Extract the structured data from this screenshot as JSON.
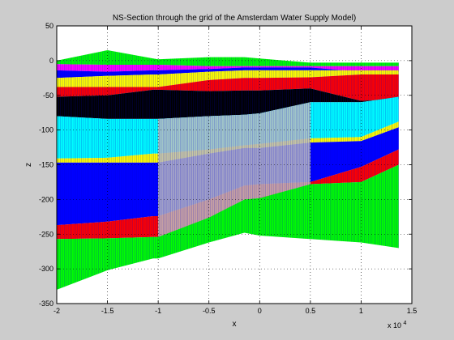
{
  "chart_data": {
    "type": "area",
    "title": "NS-Section through the grid of the Amsterdam Water Supply Model)",
    "xlabel": "x",
    "ylabel": "z",
    "x_exponent_label": "x 10",
    "x_exponent_power": "4",
    "xlim": [
      -2,
      1.5
    ],
    "ylim": [
      -350,
      50
    ],
    "xticks": [
      -2,
      -1.5,
      -1,
      -0.5,
      0,
      0.5,
      1,
      1.5
    ],
    "xtick_labels": [
      "-2",
      "-1.5",
      "-1",
      "-0.5",
      "0",
      "0.5",
      "1",
      "1.5"
    ],
    "yticks": [
      50,
      0,
      -50,
      -100,
      -150,
      -200,
      -250,
      -300,
      -350
    ],
    "ytick_labels": [
      "50",
      "0",
      "-50",
      "-100",
      "-150",
      "-200",
      "-250",
      "-300",
      "-350"
    ],
    "grid": true,
    "x_units_note": "x values in units of 10^4",
    "data_xmax": 1.37,
    "x": [
      -2.0,
      -1.5,
      -1.05,
      -1.0,
      -0.5,
      -0.15,
      0.0,
      0.5,
      1.0,
      1.37
    ],
    "surfaces": {
      "top": [
        0,
        15,
        3,
        2,
        5,
        5,
        3,
        -3,
        -3,
        -3
      ],
      "a": [
        -5,
        -6,
        -6,
        -6,
        -8,
        -8,
        -8,
        -8,
        -8,
        -8
      ],
      "b": [
        -14,
        -16,
        -14,
        -14,
        -12,
        -10,
        -10,
        -10,
        -16,
        -16
      ],
      "c": [
        -25,
        -22,
        -20,
        -20,
        -16,
        -14,
        -14,
        -14,
        -14,
        -14
      ],
      "d": [
        -38,
        -38,
        -38,
        -38,
        -28,
        -25,
        -25,
        -24,
        -20,
        -20
      ],
      "e": [
        -52,
        -50,
        -42,
        -42,
        -44,
        -43,
        -43,
        -40,
        -58,
        -55
      ],
      "f": [
        -80,
        -84,
        -84,
        -84,
        -80,
        -78,
        -76,
        -60,
        -60,
        -52
      ],
      "g": [
        -141,
        -140,
        -134,
        -134,
        -128,
        -122,
        -120,
        -112,
        -110,
        -88
      ],
      "h": [
        -147,
        -147,
        -147,
        -147,
        -134,
        -126,
        -126,
        -118,
        -116,
        -96
      ],
      "i": [
        -237,
        -232,
        -224,
        -224,
        -200,
        -180,
        -178,
        -175,
        -153,
        -128
      ],
      "j": [
        -257,
        -256,
        -254,
        -254,
        -226,
        -200,
        -198,
        -178,
        -175,
        -150
      ],
      "bot": [
        -330,
        -302,
        -285,
        -285,
        -262,
        -248,
        -252,
        -257,
        -262,
        -270
      ]
    },
    "layers": [
      {
        "top": "top",
        "bottom": "a",
        "color": "#00ff00"
      },
      {
        "top": "a",
        "bottom": "b",
        "color": "#ff00ff"
      },
      {
        "top": "b",
        "bottom": "c",
        "color": "#0000ff"
      },
      {
        "top": "c",
        "bottom": "d",
        "color": "#ffff00"
      },
      {
        "top": "d",
        "bottom": "e",
        "color": "#ff0000"
      },
      {
        "top": "e",
        "bottom": "f",
        "color": "#000000"
      },
      {
        "top": "f",
        "bottom": "g",
        "color": "#00ffff"
      },
      {
        "top": "g",
        "bottom": "h",
        "color": "#ffff00"
      },
      {
        "top": "h",
        "bottom": "i",
        "color": "#0000ff"
      },
      {
        "top": "i",
        "bottom": "j",
        "color": "#ff0000"
      },
      {
        "top": "j",
        "bottom": "bot",
        "color": "#00ff00"
      }
    ],
    "inactive_zone": {
      "x_start": -1.0,
      "x_end": 0.5,
      "color": "#c0c0c0"
    },
    "column_line_color": "#0000cc",
    "background": "#ffffff",
    "figure_background": "#cccccc"
  }
}
